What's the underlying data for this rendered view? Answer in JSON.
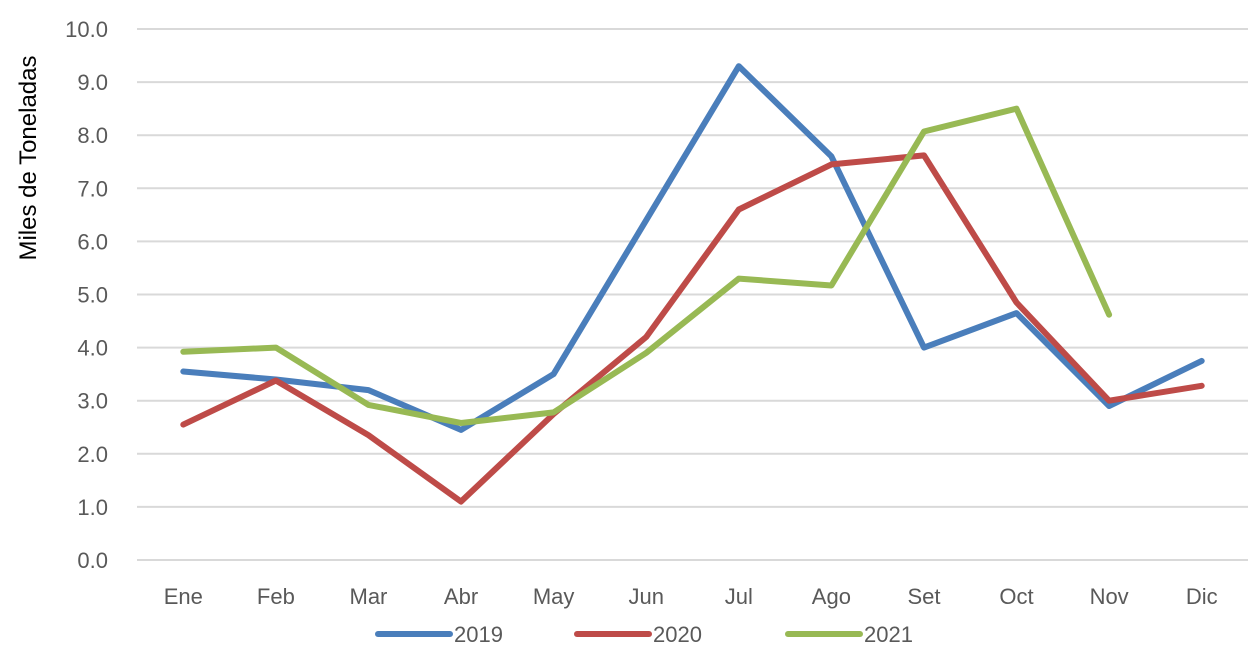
{
  "chart_data": {
    "type": "line",
    "title": "",
    "xlabel": "",
    "ylabel": "Miles de Toneladas",
    "ylim": [
      0,
      10
    ],
    "yticks": [
      "0.0",
      "1.0",
      "2.0",
      "3.0",
      "4.0",
      "5.0",
      "6.0",
      "7.0",
      "8.0",
      "9.0",
      "10.0"
    ],
    "categories": [
      "Ene",
      "Feb",
      "Mar",
      "Abr",
      "May",
      "Jun",
      "Jul",
      "Ago",
      "Set",
      "Oct",
      "Nov",
      "Dic"
    ],
    "grid": "horizontal",
    "legend_position": "bottom",
    "series": [
      {
        "name": "2019",
        "color": "#4a7ebb",
        "values": [
          3.55,
          3.4,
          3.2,
          2.45,
          3.5,
          6.4,
          9.3,
          7.6,
          4.0,
          4.65,
          2.9,
          3.75
        ]
      },
      {
        "name": "2020",
        "color": "#be4b48",
        "values": [
          2.55,
          3.38,
          2.35,
          1.1,
          2.75,
          4.2,
          6.6,
          7.45,
          7.62,
          4.85,
          3.0,
          3.28
        ]
      },
      {
        "name": "2021",
        "color": "#98b954",
        "values": [
          3.92,
          4.0,
          2.92,
          2.58,
          2.78,
          3.9,
          5.3,
          5.17,
          8.07,
          8.5,
          4.62,
          null
        ]
      }
    ]
  }
}
